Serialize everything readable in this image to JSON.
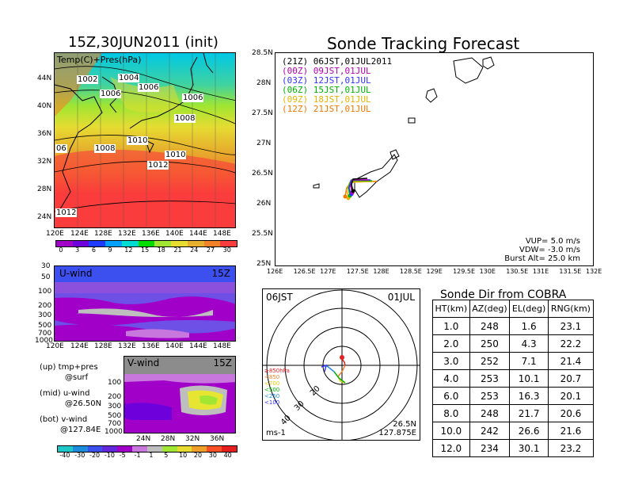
{
  "map_title": "15Z,30JUN2011 (init)",
  "map_label": "Temp(C)+Pres(hPa)",
  "map_lat_ticks": [
    "44N",
    "40N",
    "36N",
    "32N",
    "28N",
    "24N"
  ],
  "map_lon_ticks": [
    "120E",
    "124E",
    "128E",
    "132E",
    "136E",
    "140E",
    "144E",
    "148E"
  ],
  "isobar_labels": [
    "1002",
    "1004",
    "1006",
    "1006",
    "1006",
    "1008",
    "1010",
    "1010",
    "1008",
    "1012",
    "1012",
    "06"
  ],
  "temp_colorbar": {
    "labels": [
      "0",
      "3",
      "6",
      "9",
      "12",
      "15",
      "18",
      "21",
      "24",
      "27",
      "30"
    ],
    "colors": [
      "#a000c8",
      "#6e00dc",
      "#1e3cff",
      "#00a0ff",
      "#00dcd2",
      "#00dc00",
      "#a0e632",
      "#e6dc32",
      "#e6af2d",
      "#f08228",
      "#fa3c3c"
    ]
  },
  "uwind": {
    "label": "U-wind",
    "time": "15Z",
    "p_ticks": [
      "30",
      "50",
      "100",
      "200",
      "300",
      "500",
      "700",
      "1000"
    ],
    "lon_ticks": [
      "120E",
      "124E",
      "128E",
      "132E",
      "136E",
      "140E",
      "144E",
      "148E"
    ]
  },
  "vwind": {
    "label": "V-wind",
    "time": "15Z",
    "p_ticks": [
      "100",
      "200",
      "300",
      "500",
      "700",
      "1000"
    ],
    "lat_ticks": [
      "24N",
      "28N",
      "32N",
      "36N"
    ]
  },
  "panel_notes": [
    {
      "label": "(up) tmp+pres",
      "sub": "@surf"
    },
    {
      "label": "(mid) u-wind",
      "sub": "@26.50N"
    },
    {
      "label": "(bot) v-wind",
      "sub": "@127.84E"
    }
  ],
  "wind_colorbar": {
    "labels": [
      "-40",
      "-30",
      "-20",
      "-10",
      "-5",
      "-1",
      "1",
      "5",
      "10",
      "20",
      "30",
      "40"
    ],
    "colors": [
      "#1ec8c8",
      "#1e8cdc",
      "#3c50f0",
      "#6428dc",
      "#a000c8",
      "#c878dc",
      "#bebebe",
      "#a0e632",
      "#e6dc32",
      "#f0a028",
      "#fa5028",
      "#e61e1e"
    ]
  },
  "track_title": "Sonde Tracking Forecast",
  "track_lat_ticks": [
    "28.5N",
    "28N",
    "27.5N",
    "27N",
    "26.5N",
    "26N",
    "25.5N",
    "25N"
  ],
  "track_lon_ticks": [
    "126E",
    "126.5E",
    "127E",
    "127.5E",
    "128E",
    "128.5E",
    "129E",
    "129.5E",
    "130E",
    "130.5E",
    "131E",
    "131.5E",
    "132E"
  ],
  "track_legend": [
    {
      "text": "(21Z) 06JST,01JUL2011",
      "color": "#000000"
    },
    {
      "text": "(00Z) 09JST,01JUL",
      "color": "#b400b4"
    },
    {
      "text": "(03Z) 12JST,01JUL",
      "color": "#3232ff"
    },
    {
      "text": "(06Z) 15JST,01JUL",
      "color": "#00b400"
    },
    {
      "text": "(09Z) 18JST,01JUL",
      "color": "#e6b400"
    },
    {
      "text": "(12Z) 21JST,01JUL",
      "color": "#f07800"
    }
  ],
  "track_params": [
    "VUP= 5.0 m/s",
    "VDW= -3.0 m/s",
    "Burst Alt= 25.0 km"
  ],
  "polar": {
    "jst": "06JST",
    "date": "01JUL",
    "unit": "ms-1",
    "lat": "26.5N",
    "lon": "127.875E",
    "ring_labels": [
      "20",
      "30",
      "40"
    ],
    "level_labels": [
      {
        "text": "≥850hPa",
        "color": "#e61e1e"
      },
      {
        "text": "<850",
        "color": "#f08228"
      },
      {
        "text": "<700",
        "color": "#e6c800"
      },
      {
        "text": "<500",
        "color": "#00b400"
      },
      {
        "text": "<250",
        "color": "#1e8cdc"
      },
      {
        "text": "<100",
        "color": "#3232ff"
      }
    ]
  },
  "table_title": "Sonde Dir from COBRA",
  "table_headers": [
    "HT(km)",
    "AZ(deg)",
    "EL(deg)",
    "RNG(km)"
  ],
  "table_rows": [
    [
      "1.0",
      "248",
      "1.6",
      "23.1"
    ],
    [
      "2.0",
      "250",
      "4.3",
      "22.2"
    ],
    [
      "3.0",
      "252",
      "7.1",
      "21.4"
    ],
    [
      "4.0",
      "253",
      "10.1",
      "20.7"
    ],
    [
      "6.0",
      "253",
      "16.3",
      "20.1"
    ],
    [
      "8.0",
      "248",
      "21.7",
      "20.6"
    ],
    [
      "10.0",
      "242",
      "26.6",
      "21.6"
    ],
    [
      "12.0",
      "234",
      "30.1",
      "23.2"
    ]
  ]
}
